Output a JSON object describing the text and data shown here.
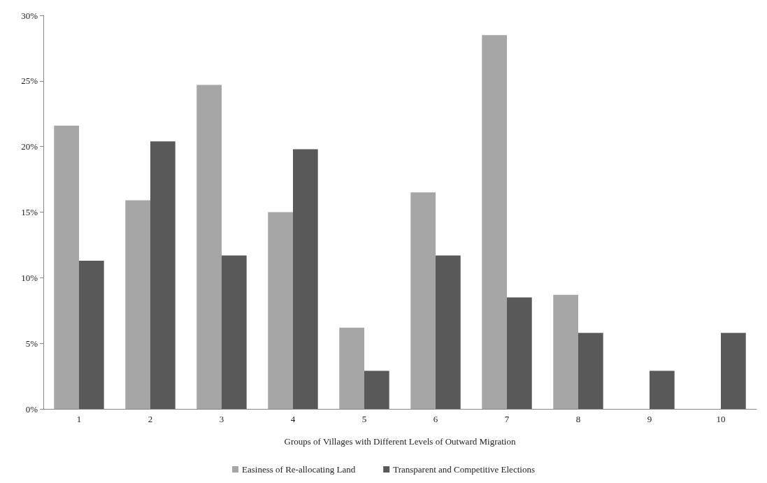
{
  "chart_data": {
    "type": "bar",
    "xlabel": "Groups of Villages with Different Levels of Outward Migration",
    "categories": [
      "1",
      "2",
      "3",
      "4",
      "5",
      "6",
      "7",
      "8",
      "9",
      "10"
    ],
    "series": [
      {
        "name": "Easiness of Re-allocating Land",
        "color": "#a6a6a6",
        "values": [
          21.6,
          15.9,
          24.7,
          15.0,
          6.2,
          16.5,
          28.5,
          8.7,
          0,
          0
        ]
      },
      {
        "name": "Transparent and Competitive Elections",
        "color": "#595959",
        "values": [
          11.3,
          20.4,
          11.7,
          19.8,
          2.9,
          11.7,
          8.5,
          5.8,
          2.9,
          5.8
        ]
      }
    ],
    "ylim": [
      0,
      30
    ],
    "yticks": [
      {
        "value": 0,
        "label": "0%"
      },
      {
        "value": 5,
        "label": "5%"
      },
      {
        "value": 10,
        "label": "10%"
      },
      {
        "value": 15,
        "label": "15%"
      },
      {
        "value": 20,
        "label": "20%"
      },
      {
        "value": 25,
        "label": "25%"
      },
      {
        "value": 30,
        "label": "30%"
      }
    ],
    "grid": false,
    "legend": "bottom"
  }
}
